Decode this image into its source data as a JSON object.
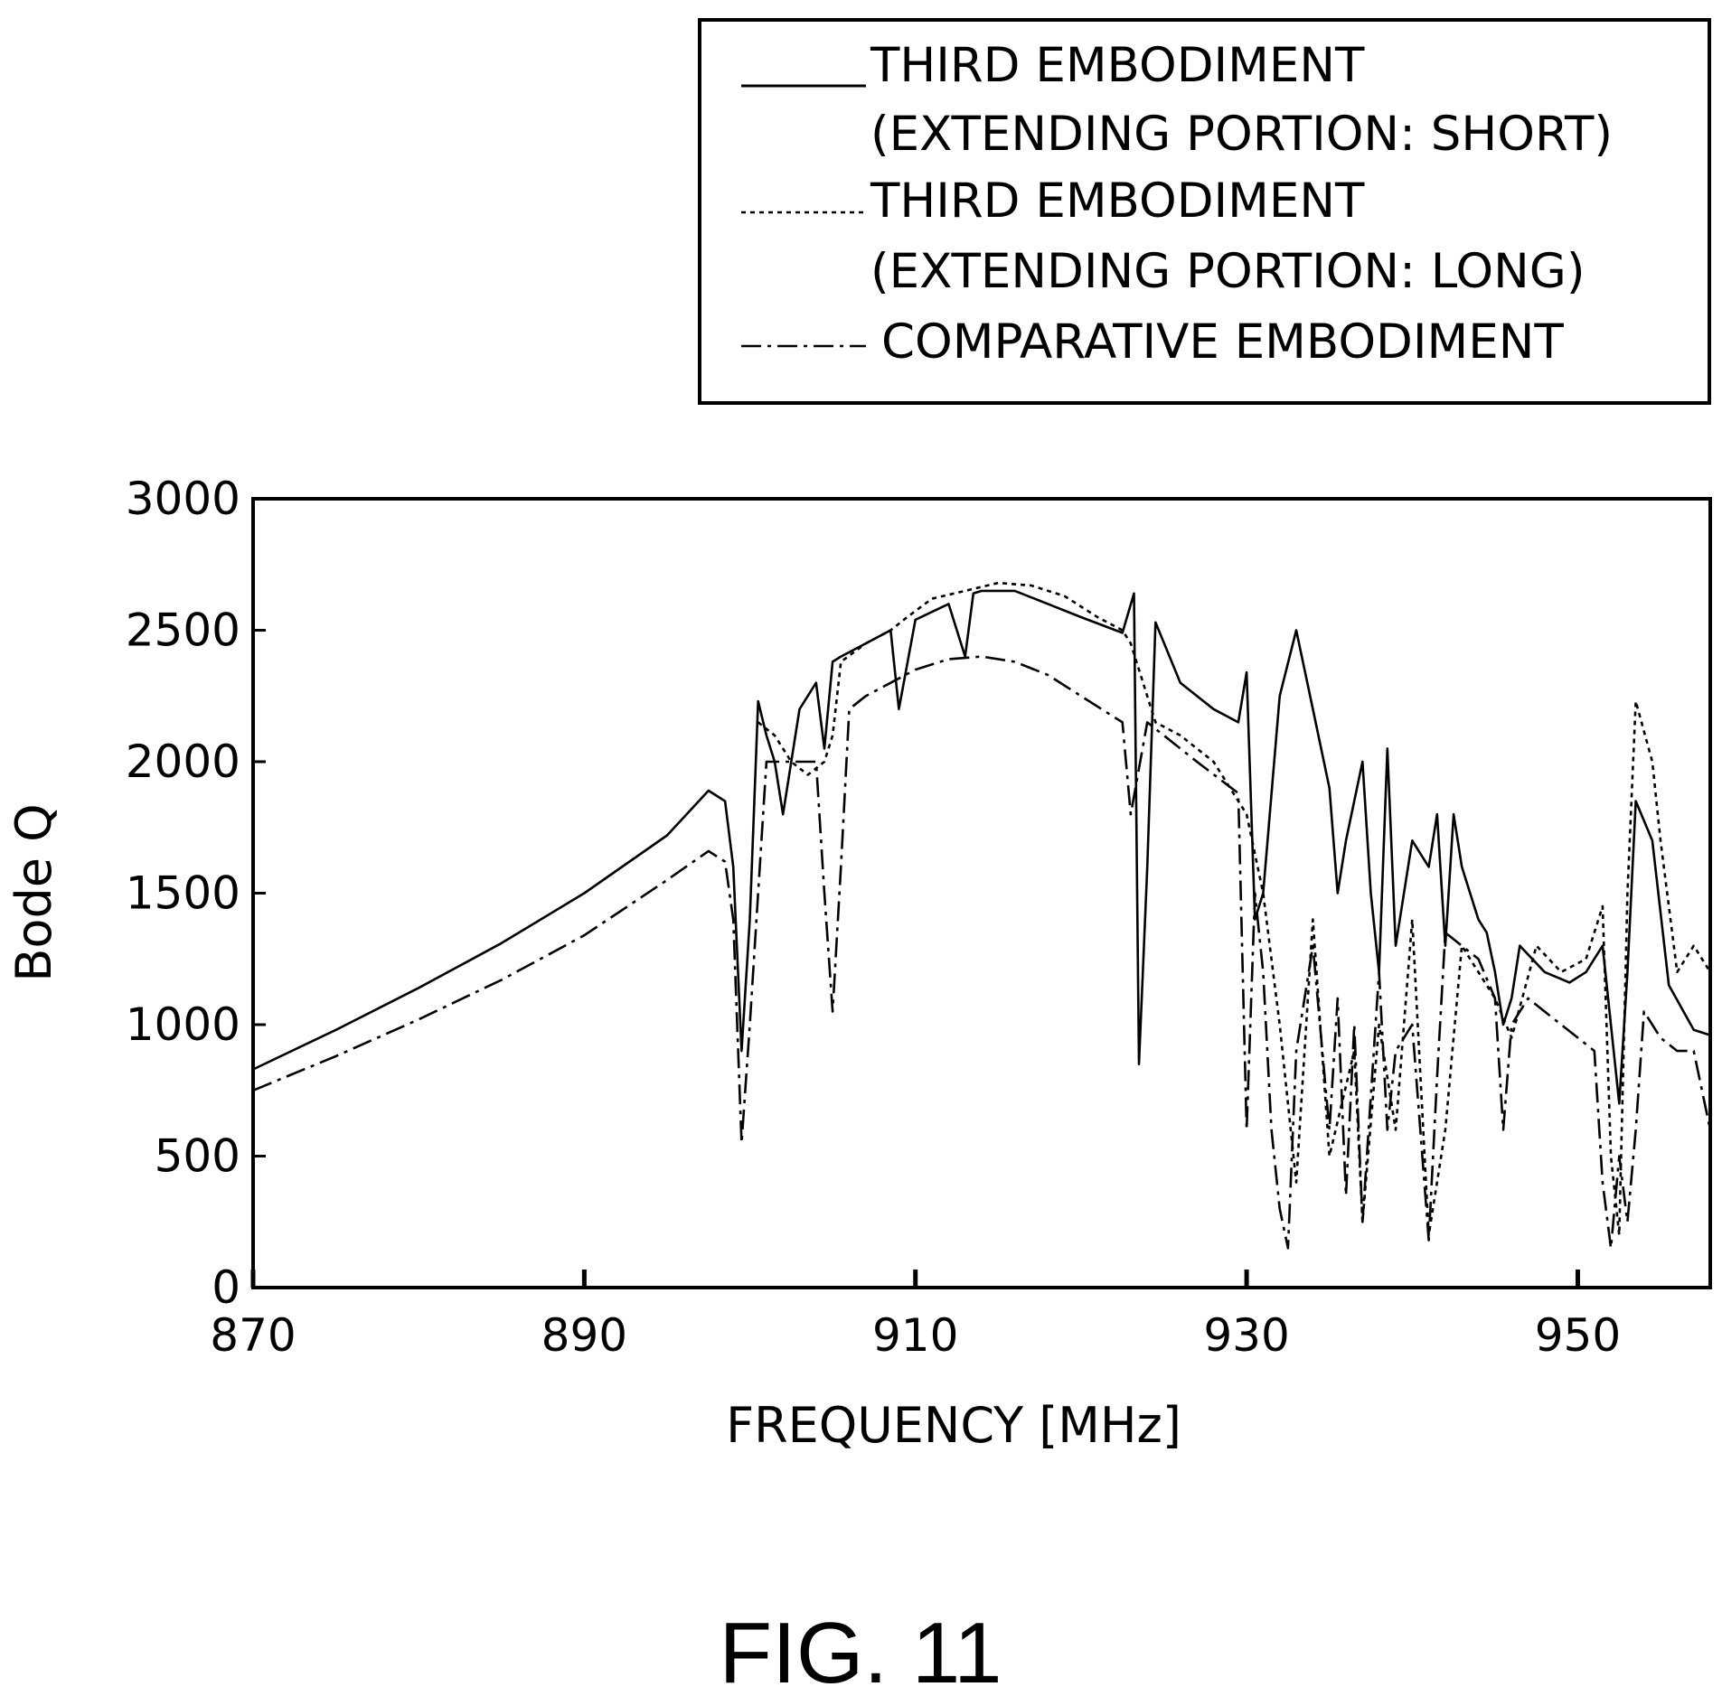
{
  "figure_caption": "FIG. 11",
  "legend": {
    "entries": [
      {
        "line1": "THIRD EMBODIMENT",
        "line2": "(EXTENDING PORTION: SHORT)",
        "style": "solid"
      },
      {
        "line1": "THIRD EMBODIMENT",
        "line2": "(EXTENDING PORTION: LONG)",
        "style": "dotted"
      },
      {
        "line1": "COMPARATIVE EMBODIMENT",
        "line2": "",
        "style": "dash-dot"
      }
    ]
  },
  "chart_data": {
    "type": "line",
    "title": "",
    "xlabel": "FREQUENCY [MHz]",
    "ylabel": "Bode Q",
    "xlim": [
      870,
      958
    ],
    "ylim": [
      0,
      3000
    ],
    "xticks": [
      870,
      890,
      910,
      930,
      950
    ],
    "yticks": [
      0,
      500,
      1000,
      1500,
      2000,
      2500,
      3000
    ],
    "xtick_labels": [
      "870",
      "890",
      "910",
      "930",
      "950"
    ],
    "ytick_labels": [
      "0",
      "500",
      "1000",
      "1500",
      "2000",
      "2500",
      "3000"
    ],
    "grid": false,
    "legend_position": "top-right, outside plot",
    "series": [
      {
        "name": "THIRD EMBODIMENT (EXTENDING PORTION: SHORT)",
        "style": "solid",
        "x": [
          870,
          875,
          880,
          885,
          890,
          895,
          897.5,
          898.5,
          899.0,
          899.5,
          900.0,
          900.5,
          901.0,
          901.5,
          902.0,
          903.0,
          904.0,
          904.5,
          905.0,
          905.5,
          907.0,
          908.5,
          909.0,
          910,
          912,
          913,
          913.5,
          914,
          916,
          918,
          920,
          922.5,
          923.2,
          923.5,
          924.0,
          924.5,
          926,
          928,
          929.5,
          930.0,
          930.5,
          931.0,
          932,
          933.0,
          934.0,
          935.0,
          935.5,
          936,
          937.0,
          937.5,
          938.0,
          938.5,
          939.0,
          940.0,
          941.0,
          941.5,
          942.0,
          942.5,
          943.0,
          944.0,
          944.5,
          945.0,
          945.5,
          946.0,
          946.5,
          948,
          949.5,
          950.5,
          951.5,
          952.5,
          953.0,
          953.5,
          954.5,
          955.5,
          957,
          958
        ],
        "y": [
          830,
          980,
          1140,
          1310,
          1500,
          1720,
          1890,
          1850,
          1600,
          900,
          1400,
          2230,
          2100,
          2000,
          1800,
          2200,
          2300,
          2050,
          2380,
          2400,
          2450,
          2500,
          2200,
          2540,
          2600,
          2400,
          2640,
          2650,
          2650,
          2600,
          2550,
          2490,
          2640,
          850,
          1600,
          2530,
          2300,
          2200,
          2150,
          2340,
          1400,
          1500,
          2250,
          2500,
          2200,
          1900,
          1500,
          1700,
          2000,
          1500,
          1200,
          2050,
          1300,
          1700,
          1600,
          1800,
          1300,
          1800,
          1600,
          1400,
          1350,
          1200,
          1000,
          1100,
          1300,
          1200,
          1160,
          1200,
          1300,
          700,
          1200,
          1850,
          1700,
          1150,
          980,
          960
        ]
      },
      {
        "name": "THIRD EMBODIMENT (EXTENDING PORTION: LONG)",
        "style": "dotted",
        "x": [
          900.5,
          901.5,
          902.5,
          903.5,
          904.5,
          905.0,
          905.5,
          907,
          908.5,
          909.5,
          911,
          913,
          915,
          917,
          919,
          921,
          922.5,
          923,
          924.5,
          926,
          928,
          930,
          931,
          932,
          933,
          934,
          935,
          936.5,
          937.0,
          938.0,
          939.0,
          940.0,
          941.0,
          942.0,
          943.0,
          944.0,
          945.0,
          946.0,
          947.5,
          949.0,
          950.5,
          951.5,
          952.0,
          952.5,
          953.0,
          953.5,
          954.5,
          955.0,
          956.0,
          957.0,
          958.0
        ],
        "y": [
          2150,
          2100,
          2000,
          1950,
          2000,
          2100,
          2380,
          2450,
          2500,
          2550,
          2620,
          2650,
          2680,
          2670,
          2630,
          2550,
          2500,
          2450,
          2150,
          2100,
          2000,
          1800,
          1500,
          1000,
          400,
          1400,
          500,
          900,
          250,
          1000,
          600,
          1400,
          200,
          600,
          1300,
          1200,
          1100,
          950,
          1300,
          1200,
          1250,
          1450,
          500,
          200,
          1500,
          2230,
          2000,
          1700,
          1200,
          1300,
          1200
        ]
      },
      {
        "name": "COMPARATIVE EMBODIMENT",
        "style": "dash-dot",
        "x": [
          870,
          875,
          880,
          885,
          890,
          895,
          897.5,
          898.5,
          899.0,
          899.5,
          900.0,
          901,
          902,
          903,
          903.5,
          904,
          904.5,
          905.0,
          905.5,
          906,
          907,
          908.5,
          910,
          912,
          914,
          916,
          918,
          920,
          922.5,
          923.0,
          924.0,
          925,
          927,
          929.5,
          930.0,
          930.5,
          931.0,
          931.5,
          932.0,
          932.5,
          933.0,
          934.0,
          935.0,
          935.5,
          936.0,
          936.5,
          937.0,
          938.0,
          938.5,
          939.0,
          940.0,
          941.0,
          941.5,
          942.0,
          943.0,
          944.0,
          945.0,
          945.5,
          946.0,
          947.0,
          948.0,
          949.0,
          950.0,
          951.0,
          951.5,
          952.0,
          952.5,
          953.0,
          953.5,
          954.0,
          955.0,
          956.0,
          957.0,
          958.0
        ],
        "y": [
          750,
          880,
          1020,
          1170,
          1340,
          1550,
          1660,
          1620,
          1400,
          550,
          1000,
          2000,
          2000,
          2000,
          2000,
          2000,
          1500,
          1050,
          1600,
          2200,
          2250,
          2300,
          2350,
          2390,
          2400,
          2380,
          2330,
          2250,
          2150,
          1800,
          2150,
          2100,
          2000,
          1880,
          600,
          1500,
          1200,
          600,
          300,
          150,
          900,
          1300,
          600,
          1100,
          350,
          1000,
          250,
          1200,
          600,
          900,
          1000,
          180,
          800,
          1350,
          1300,
          1250,
          1100,
          600,
          1000,
          1100,
          1050,
          1000,
          950,
          900,
          400,
          150,
          500,
          250,
          600,
          1050,
          950,
          900,
          900,
          600
        ]
      }
    ]
  }
}
